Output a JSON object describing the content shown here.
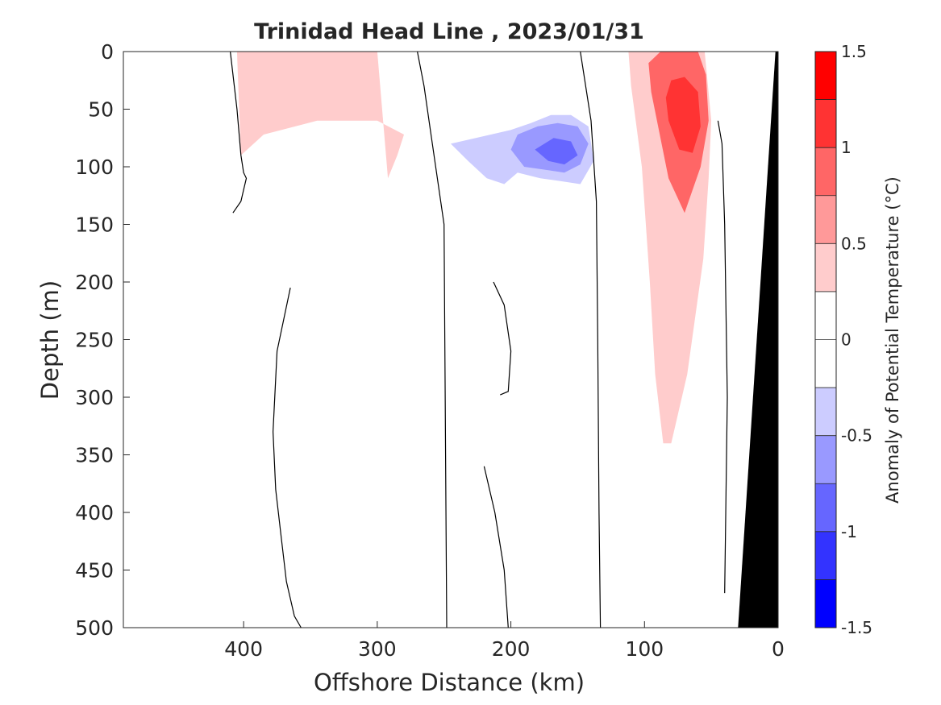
{
  "chart_data": {
    "type": "heatmap",
    "title": "Trinidad Head Line , 2023/01/31",
    "xlabel": "Offshore Distance (km)",
    "ylabel": "Depth (m)",
    "xlim": [
      490,
      0
    ],
    "ylim": [
      0,
      500
    ],
    "x_reversed": true,
    "y_reversed": true,
    "x_ticks": [
      "400",
      "300",
      "200",
      "100",
      "0"
    ],
    "y_ticks": [
      "0",
      "50",
      "100",
      "150",
      "200",
      "250",
      "300",
      "350",
      "400",
      "450",
      "500"
    ],
    "colorbar": {
      "label": "Anomaly of Potential Temperature (°C)",
      "range": [
        -1.5,
        1.5
      ],
      "step": 0.25,
      "tick_labels": [
        "1.5",
        "1",
        "0.5",
        "0",
        "-0.5",
        "-1",
        "-1.5"
      ],
      "colors": [
        "#ff0000",
        "#ff3333",
        "#ff6666",
        "#ff9999",
        "#ffcccc",
        "#ffffff",
        "#ffffff",
        "#ccccff",
        "#9999ff",
        "#6666ff",
        "#3333ff",
        "#0000ff"
      ]
    },
    "levels": [
      {
        "level": 0.25,
        "x": [
          400,
          385,
          330,
          285,
          270,
          255,
          245,
          250,
          248,
          245,
          252,
          264,
          300,
          336,
          365,
          402,
          410
        ],
        "y": [
          100,
          75,
          28,
          0,
          10,
          40,
          75,
          85,
          110,
          175,
          310,
          500,
          500,
          400,
          300,
          160,
          130
        ]
      },
      {
        "level": 0.5,
        "x": [
          402,
          385,
          345,
          300,
          280,
          285,
          292,
          300,
          325,
          355,
          385,
          405
        ],
        "y": [
          90,
          72,
          60,
          60,
          72,
          90,
          110,
          0,
          0,
          0,
          0,
          0
        ]
      },
      {
        "level": 0.25,
        "x": [
          140,
          128,
          112,
          108,
          102,
          96,
          82,
          60,
          48,
          40,
          48,
          55,
          62,
          68,
          80,
          96,
          108,
          112,
          120,
          132
        ],
        "y": [
          0,
          60,
          120,
          200,
          300,
          360,
          430,
          500,
          500,
          460,
          360,
          260,
          160,
          80,
          0,
          0,
          0,
          0,
          0,
          0
        ]
      },
      {
        "level": 0.5,
        "x": [
          110,
          102,
          96,
          92,
          86,
          80,
          68,
          56,
          52,
          50,
          55,
          60,
          70,
          82,
          100,
          112
        ],
        "y": [
          30,
          100,
          200,
          280,
          340,
          340,
          280,
          180,
          110,
          60,
          0,
          0,
          0,
          0,
          0,
          0
        ]
      },
      {
        "level": 1.0,
        "x": [
          95,
          82,
          70,
          58,
          52,
          54,
          60,
          72,
          88,
          97
        ],
        "y": [
          35,
          110,
          140,
          100,
          60,
          20,
          0,
          0,
          0,
          10
        ]
      },
      {
        "level": 1.25,
        "x": [
          84,
          82,
          74,
          64,
          58,
          60,
          70,
          80
        ],
        "y": [
          40,
          60,
          85,
          88,
          65,
          35,
          22,
          25
        ]
      },
      {
        "level": -0.25,
        "x": [
          255,
          240,
          220,
          200,
          196,
          182,
          176,
          168,
          155,
          150,
          162,
          165,
          172,
          180,
          190,
          200,
          212,
          228,
          246
        ],
        "y": [
          80,
          92,
          115,
          150,
          180,
          150,
          210,
          300,
          380,
          330,
          260,
          200,
          150,
          130,
          125,
          110,
          80,
          60,
          60
        ]
      },
      {
        "level": -0.5,
        "x": [
          245,
          232,
          218,
          205,
          195,
          178,
          165,
          148,
          138,
          142,
          155,
          170,
          185,
          200,
          215
        ],
        "y": [
          80,
          95,
          110,
          115,
          105,
          110,
          112,
          115,
          95,
          65,
          55,
          55,
          62,
          68,
          72
        ]
      },
      {
        "level": -0.75,
        "x": [
          200,
          190,
          172,
          160,
          148,
          142,
          150,
          165,
          180,
          195
        ],
        "y": [
          85,
          100,
          103,
          105,
          98,
          80,
          65,
          62,
          65,
          72
        ]
      },
      {
        "level": -1.0,
        "x": [
          182,
          172,
          160,
          150,
          155,
          168
        ],
        "y": [
          85,
          95,
          98,
          90,
          78,
          75
        ]
      }
    ],
    "zero_contours": [
      {
        "x": [
          410,
          405,
          402,
          400,
          398,
          400,
          402,
          408
        ],
        "y": [
          0,
          50,
          90,
          105,
          110,
          120,
          130,
          140
        ]
      },
      {
        "x": [
          365,
          375,
          378,
          376,
          372,
          368,
          362,
          357
        ],
        "y": [
          205,
          260,
          330,
          380,
          420,
          460,
          490,
          500
        ]
      },
      {
        "x": [
          148,
          140,
          136,
          135,
          134,
          133
        ],
        "y": [
          0,
          60,
          130,
          250,
          400,
          500
        ]
      },
      {
        "x": [
          270,
          265,
          260,
          255,
          250,
          248
        ],
        "y": [
          0,
          30,
          70,
          110,
          150,
          500
        ]
      },
      {
        "x": [
          220,
          212,
          205,
          202
        ],
        "y": [
          360,
          400,
          450,
          500
        ]
      },
      {
        "x": [
          213,
          205,
          200,
          202,
          208
        ],
        "y": [
          200,
          220,
          260,
          295,
          298
        ]
      },
      {
        "x": [
          45,
          42,
          40,
          38,
          40
        ],
        "y": [
          60,
          80,
          150,
          300,
          470
        ]
      }
    ],
    "bathymetry": {
      "x": [
        0,
        0,
        30,
        2
      ],
      "y": [
        0,
        500,
        500,
        0
      ],
      "color": "#000000"
    }
  }
}
